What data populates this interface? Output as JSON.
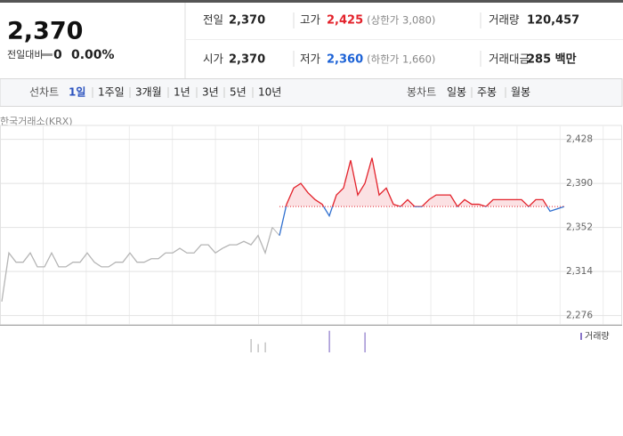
{
  "header": {
    "price": "2,370",
    "change_label": "전일대비",
    "change": "0",
    "change_rate": "0.00%"
  },
  "stats": [
    {
      "label": "전일",
      "value": "2,370"
    },
    {
      "label": "고가",
      "value": "2,425",
      "note": "(상한가 3,080)",
      "color": "#e3222b"
    },
    {
      "label": "거래량",
      "value": "120,457"
    },
    {
      "label": "시가",
      "value": "2,370"
    },
    {
      "label": "저가",
      "value": "2,360",
      "note": "(하한가 1,660)",
      "color": "#1c62d6"
    },
    {
      "label": "거래대금",
      "value": "285 백만"
    }
  ],
  "line_tabs": {
    "label": "선차트",
    "items": [
      "1일",
      "1주일",
      "3개월",
      "1년",
      "3년",
      "5년",
      "10년"
    ]
  },
  "candle_tabs": {
    "label": "봉차트",
    "items": [
      "일봉",
      "주봉",
      "월봉"
    ]
  },
  "chart_data": {
    "type": "line",
    "source": "한국거래소(KRX)",
    "volume_label": "거래량",
    "ylim": [
      2268,
      2440
    ],
    "yticks": [
      {
        "value": 2428,
        "label": "2,428"
      },
      {
        "value": 2390,
        "label": "2,390"
      },
      {
        "value": 2352,
        "label": "2,352"
      },
      {
        "value": 2314,
        "label": "2,314"
      },
      {
        "value": 2276,
        "label": "2,276"
      }
    ],
    "grid": true,
    "baseline": 2370,
    "series": [
      {
        "color": "#b5b5b5",
        "values": [
          2288,
          2330,
          2322,
          2322,
          2330,
          2318,
          2318,
          2330,
          2318,
          2318,
          2322,
          2322,
          2330,
          2322,
          2318,
          2318,
          2322,
          2322,
          2330,
          2322,
          2322,
          2325,
          2325,
          2330,
          2330,
          2334,
          2330,
          2330,
          2337,
          2337,
          2330,
          2334,
          2337,
          2337,
          2340,
          2337,
          2345,
          2330,
          2352,
          null,
          null,
          null,
          null,
          null,
          null,
          null,
          null,
          null,
          null,
          null,
          null,
          null,
          null,
          null,
          null,
          null,
          null,
          null,
          null,
          null,
          null,
          null,
          null,
          null,
          null,
          null,
          null,
          null,
          null,
          null,
          null,
          null,
          null,
          null,
          null,
          null,
          null,
          null,
          null,
          null
        ]
      },
      {
        "color": "#e3222b",
        "down_color": "#2f6fcf",
        "fill": "#fbe1e3",
        "values": [
          null,
          null,
          null,
          null,
          null,
          null,
          null,
          null,
          null,
          null,
          null,
          null,
          null,
          null,
          null,
          null,
          null,
          null,
          null,
          null,
          null,
          null,
          null,
          null,
          null,
          null,
          null,
          null,
          null,
          null,
          null,
          null,
          null,
          null,
          null,
          null,
          null,
          null,
          null,
          2345,
          2372,
          2386,
          2390,
          2382,
          2376,
          2372,
          2362,
          2380,
          2386,
          2410,
          2380,
          2390,
          2412,
          2380,
          2386,
          2372,
          2370,
          2376,
          2370,
          2370,
          2376,
          2380,
          2380,
          2380,
          2370,
          2376,
          2372,
          2372,
          2370,
          2376,
          2376,
          2376,
          2376,
          2376,
          2370,
          2376,
          2376,
          2366,
          2368,
          2370
        ]
      }
    ],
    "volume": {
      "ylim": [
        0,
        30
      ],
      "color": "#b5b5b5",
      "up_color": "#8a76c9",
      "values": [
        0,
        0,
        0,
        0,
        0,
        0,
        0,
        0,
        0,
        0,
        0,
        0,
        0,
        0,
        0,
        0,
        0,
        0,
        0,
        0,
        0,
        0,
        0,
        0,
        0,
        0,
        0,
        0,
        0,
        0,
        0,
        0,
        0,
        0,
        0,
        16,
        10,
        12,
        0,
        0,
        0,
        0,
        0,
        0,
        0,
        0,
        26,
        0,
        0,
        0,
        0,
        24,
        0,
        0,
        0,
        0,
        0,
        0,
        0,
        0,
        0,
        0,
        0,
        0,
        0,
        0,
        0,
        0,
        0,
        0,
        0,
        0,
        0,
        0,
        0,
        0,
        0,
        0,
        0,
        0
      ]
    }
  }
}
